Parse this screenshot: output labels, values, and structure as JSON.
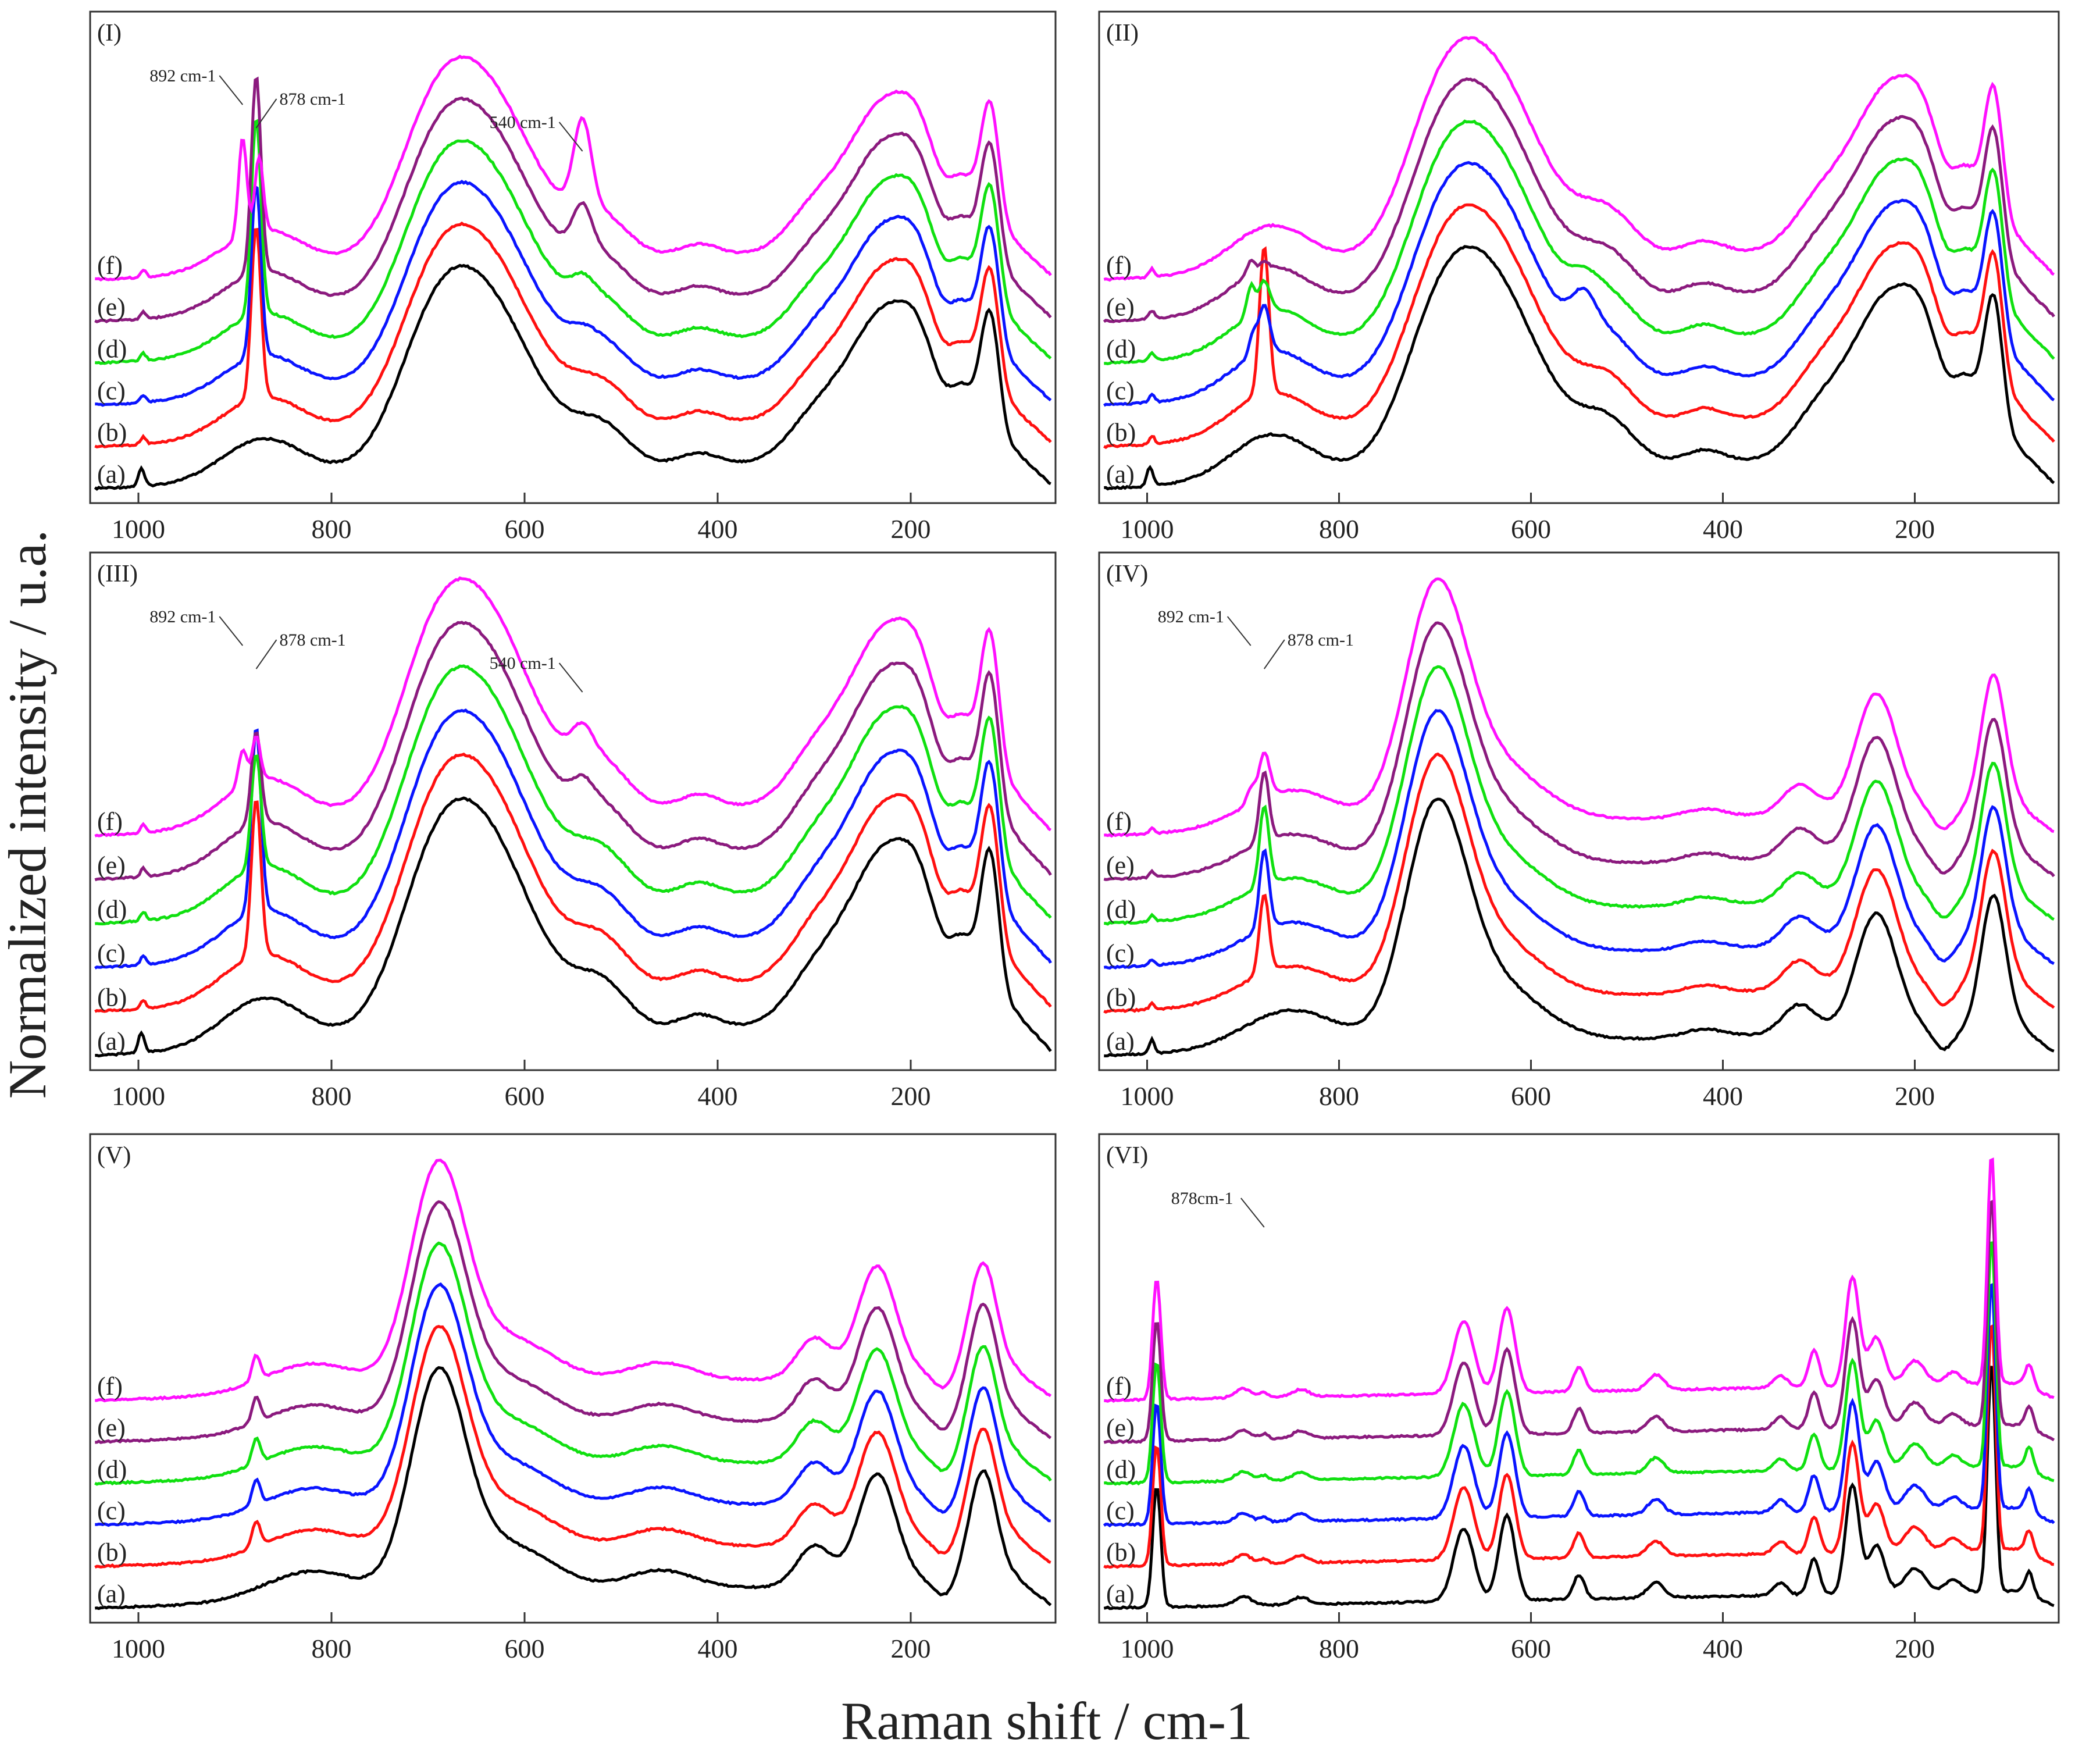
{
  "figure": {
    "y_axis_label": "Normalized intensity / u.a.",
    "x_axis_label": "Raman shift / cm-1"
  },
  "chart_data": {
    "type": "line",
    "x_axis": {
      "label": "Raman shift / cm-1",
      "reversed": true,
      "range": [
        1050,
        50
      ],
      "ticks": [
        1000,
        800,
        600,
        400,
        200
      ],
      "tick_labels": [
        "1000",
        "800",
        "600",
        "400",
        "200"
      ]
    },
    "y_axis": {
      "label": "Normalized intensity / u.a.",
      "ticks_shown": false
    },
    "series_colors": {
      "a": "#000000",
      "b": "#ff1010",
      "c": "#0a14ff",
      "d": "#10e010",
      "e": "#8b1a7e",
      "f": "#ff10ff"
    },
    "series_labels": [
      "(a)",
      "(b)",
      "(c)",
      "(d)",
      "(e)",
      "(f)"
    ],
    "panels": [
      {
        "id": "I",
        "label": "(I)",
        "line_width": 5,
        "baseline": {
          "bands": [
            [
              995,
              4,
              6
            ],
            [
              870,
              60,
              35
            ],
            [
              700,
              50,
              40
            ],
            [
              650,
              80,
              150
            ],
            [
              520,
              40,
              30
            ],
            [
              420,
              30,
              10
            ],
            [
              300,
              40,
              30
            ],
            [
              225,
              55,
              120
            ],
            [
              190,
              25,
              30
            ],
            [
              118,
              14,
              110
            ],
            [
              145,
              18,
              40
            ]
          ]
        },
        "series": [
          {
            "name": "(a)",
            "extra": [
              [
                998,
                4,
                10
              ]
            ]
          },
          {
            "name": "(b)",
            "extra": [
              [
                878,
                7,
                140
              ]
            ]
          },
          {
            "name": "(c)",
            "extra": [
              [
                878,
                7,
                140
              ],
              [
                540,
                15,
                5
              ]
            ]
          },
          {
            "name": "(d)",
            "extra": [
              [
                878,
                7,
                160
              ],
              [
                540,
                15,
                12
              ]
            ]
          },
          {
            "name": "(e)",
            "extra": [
              [
                878,
                7,
                160
              ],
              [
                540,
                14,
                35
              ]
            ]
          },
          {
            "name": "(f)",
            "extra": [
              [
                892,
                6,
                80
              ],
              [
                875,
                6,
                60
              ],
              [
                540,
                13,
                70
              ]
            ]
          }
        ],
        "annotations": [
          {
            "text": "892 cm-1",
            "peak": 892
          },
          {
            "text": "878 cm-1",
            "peak": 878
          },
          {
            "text": "540 cm-1",
            "peak": 540
          }
        ]
      },
      {
        "id": "II",
        "label": "(II)",
        "line_width": 5,
        "baseline": {
          "bands": [
            [
              995,
              4,
              6
            ],
            [
              870,
              60,
              35
            ],
            [
              700,
              50,
              40
            ],
            [
              650,
              80,
              150
            ],
            [
              520,
              40,
              30
            ],
            [
              420,
              30,
              10
            ],
            [
              300,
              40,
              30
            ],
            [
              225,
              55,
              120
            ],
            [
              190,
              25,
              30
            ],
            [
              118,
              14,
              110
            ],
            [
              145,
              18,
              40
            ]
          ]
        },
        "series": [
          {
            "name": "(a)",
            "extra": [
              [
                998,
                4,
                10
              ]
            ]
          },
          {
            "name": "(b)",
            "extra": [
              [
                878,
                7,
                110
              ]
            ]
          },
          {
            "name": "(c)",
            "extra": [
              [
                878,
                8,
                35
              ],
              [
                890,
                6,
                15
              ],
              [
                545,
                18,
                25
              ]
            ]
          },
          {
            "name": "(d)",
            "extra": [
              [
                878,
                8,
                22
              ],
              [
                892,
                6,
                22
              ],
              [
                545,
                20,
                10
              ]
            ]
          },
          {
            "name": "(e)",
            "extra": [
              [
                892,
                6,
                10
              ],
              [
                878,
                6,
                6
              ]
            ]
          },
          {
            "name": "(f)",
            "extra": []
          }
        ],
        "annotations": []
      },
      {
        "id": "III",
        "label": "(III)",
        "line_width": 5,
        "baseline": {
          "bands": [
            [
              995,
              4,
              6
            ],
            [
              870,
              60,
              35
            ],
            [
              700,
              50,
              40
            ],
            [
              650,
              80,
              150
            ],
            [
              520,
              40,
              30
            ],
            [
              420,
              30,
              10
            ],
            [
              300,
              40,
              30
            ],
            [
              225,
              55,
              120
            ],
            [
              190,
              25,
              30
            ],
            [
              118,
              14,
              110
            ],
            [
              145,
              18,
              40
            ]
          ]
        },
        "series": [
          {
            "name": "(a)",
            "extra": [
              [
                998,
                4,
                10
              ]
            ]
          },
          {
            "name": "(b)",
            "extra": [
              [
                878,
                7,
                110
              ]
            ]
          },
          {
            "name": "(c)",
            "extra": [
              [
                878,
                7,
                130
              ]
            ]
          },
          {
            "name": "(d)",
            "extra": [
              [
                878,
                7,
                80
              ]
            ]
          },
          {
            "name": "(e)",
            "extra": [
              [
                878,
                7,
                65
              ],
              [
                540,
                15,
                12
              ]
            ]
          },
          {
            "name": "(f)",
            "extra": [
              [
                892,
                6,
                25
              ],
              [
                878,
                6,
                30
              ],
              [
                540,
                15,
                18
              ]
            ]
          }
        ],
        "annotations": [
          {
            "text": "892 cm-1",
            "peak": 892
          },
          {
            "text": "878 cm-1",
            "peak": 878
          },
          {
            "text": "540 cm-1",
            "peak": 540
          }
        ]
      },
      {
        "id": "IV",
        "label": "(IV)",
        "line_width": 5,
        "baseline": {
          "bands": [
            [
              995,
              4,
              6
            ],
            [
              850,
              70,
              40
            ],
            [
              700,
              45,
              220
            ],
            [
              640,
              70,
              60
            ],
            [
              420,
              30,
              8
            ],
            [
              320,
              25,
              30
            ],
            [
              240,
              30,
              120
            ],
            [
              118,
              18,
              135
            ],
            [
              170,
              15,
              -20
            ]
          ]
        },
        "series": [
          {
            "name": "(a)",
            "extra": [
              [
                995,
                4,
                8
              ]
            ]
          },
          {
            "name": "(b)",
            "extra": [
              [
                878,
                7,
                80
              ]
            ]
          },
          {
            "name": "(c)",
            "extra": [
              [
                878,
                7,
                80
              ]
            ]
          },
          {
            "name": "(d)",
            "extra": [
              [
                878,
                7,
                80
              ]
            ]
          },
          {
            "name": "(e)",
            "extra": [
              [
                878,
                7,
                70
              ]
            ]
          },
          {
            "name": "(f)",
            "extra": [
              [
                878,
                8,
                45
              ],
              [
                892,
                6,
                15
              ]
            ]
          }
        ],
        "annotations": [
          {
            "text": "892 cm-1",
            "peak": 892
          },
          {
            "text": "878 cm-1",
            "peak": 878
          }
        ]
      },
      {
        "id": "V",
        "label": "(V)",
        "line_width": 5,
        "baseline": {
          "bands": [
            [
              820,
              70,
              30
            ],
            [
              690,
              40,
              210
            ],
            [
              620,
              70,
              50
            ],
            [
              460,
              50,
              20
            ],
            [
              300,
              25,
              40
            ],
            [
              235,
              28,
              110
            ],
            [
              125,
              20,
              110
            ],
            [
              165,
              15,
              -15
            ]
          ]
        },
        "series": [
          {
            "name": "(a)",
            "extra": []
          },
          {
            "name": "(b)",
            "extra": [
              [
                878,
                6,
                25
              ]
            ]
          },
          {
            "name": "(c)",
            "extra": [
              [
                878,
                6,
                25
              ]
            ]
          },
          {
            "name": "(d)",
            "extra": [
              [
                878,
                6,
                25
              ]
            ]
          },
          {
            "name": "(e)",
            "extra": [
              [
                878,
                6,
                25
              ]
            ]
          },
          {
            "name": "(f)",
            "extra": [
              [
                878,
                6,
                25
              ]
            ]
          }
        ],
        "annotations": []
      },
      {
        "id": "VI",
        "label": "(VI)",
        "line_width": 5,
        "baseline": {
          "bands": [
            [
              990,
              6,
              200
            ],
            [
              900,
              12,
              15
            ],
            [
              840,
              12,
              12
            ],
            [
              670,
              15,
              120
            ],
            [
              625,
              12,
              140
            ],
            [
              550,
              8,
              40
            ],
            [
              470,
              12,
              25
            ],
            [
              340,
              10,
              20
            ],
            [
              305,
              8,
              60
            ],
            [
              265,
              10,
              180
            ],
            [
              240,
              12,
              80
            ],
            [
              200,
              15,
              40
            ],
            [
              160,
              12,
              20
            ],
            [
              120,
              6,
              380
            ],
            [
              80,
              6,
              50
            ]
          ]
        },
        "series": [
          {
            "name": "(a)",
            "extra": []
          },
          {
            "name": "(b)",
            "extra": [
              [
                878,
                6,
                8
              ]
            ]
          },
          {
            "name": "(c)",
            "extra": [
              [
                878,
                6,
                8
              ]
            ]
          },
          {
            "name": "(d)",
            "extra": [
              [
                878,
                6,
                8
              ]
            ]
          },
          {
            "name": "(e)",
            "extra": [
              [
                878,
                6,
                8
              ]
            ]
          },
          {
            "name": "(f)",
            "extra": [
              [
                878,
                6,
                8
              ]
            ]
          }
        ],
        "annotations": [
          {
            "text": "878cm-1",
            "peak": 878
          }
        ]
      }
    ]
  }
}
